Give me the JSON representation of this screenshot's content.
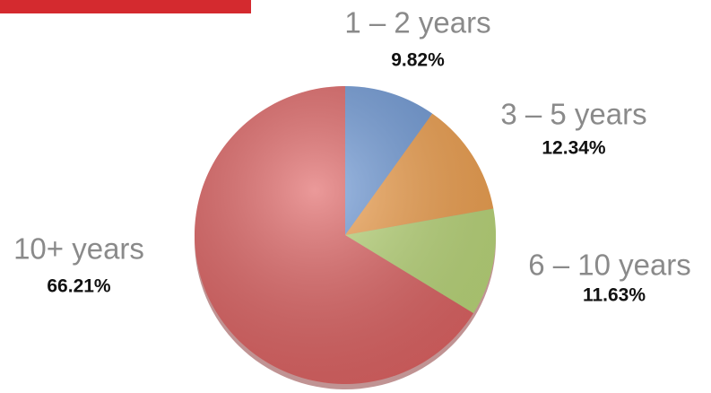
{
  "chart_data": {
    "type": "pie",
    "categories": [
      "1 – 2 years",
      "3 – 5 years",
      "6 – 10 years",
      "10+ years"
    ],
    "values": [
      9.82,
      12.34,
      11.63,
      66.21
    ],
    "value_labels": [
      "9.82%",
      "12.34%",
      "11.63%",
      "66.21%"
    ],
    "colors": [
      "#6f9ad8",
      "#f2a14e",
      "#bcd97a",
      "#e06363"
    ]
  }
}
